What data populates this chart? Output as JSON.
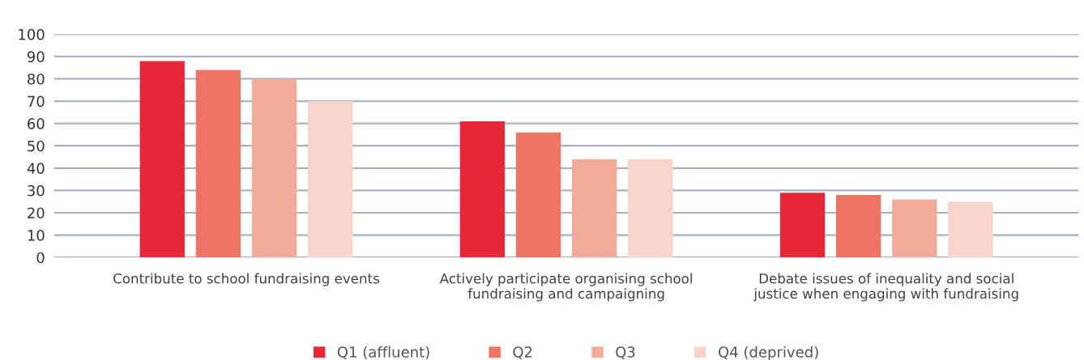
{
  "chart_data": {
    "type": "bar",
    "categories": [
      "Contribute to school fundraising events",
      "Actively participate organising school\nfundraising and campaigning",
      "Debate issues of inequality and social\njustice when engaging with fundraising"
    ],
    "series": [
      {
        "name": "Q1 (affluent)",
        "color": "#e82838",
        "values": [
          88,
          61,
          29
        ]
      },
      {
        "name": "Q2",
        "color": "#ee7565",
        "values": [
          84,
          56,
          28
        ]
      },
      {
        "name": "Q3",
        "color": "#f2ab9a",
        "values": [
          80,
          44,
          26
        ]
      },
      {
        "name": "Q4 (deprived)",
        "color": "#f8d4ca",
        "values": [
          70,
          44,
          25
        ]
      }
    ],
    "ylim": [
      0,
      100
    ],
    "yticks": [
      0,
      10,
      20,
      30,
      40,
      50,
      60,
      70,
      80,
      90,
      100
    ],
    "grid": "y",
    "legend": "bottom"
  }
}
